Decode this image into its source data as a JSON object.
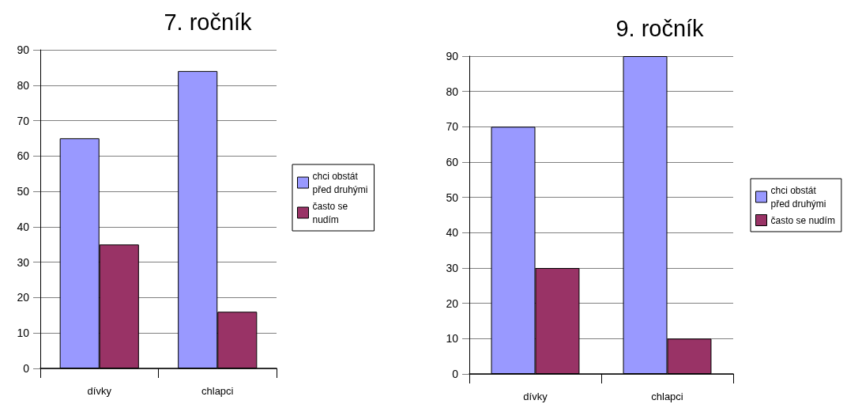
{
  "chart_data": [
    {
      "type": "bar",
      "title": "7. ročník",
      "categories": [
        "dívky",
        "chlapci"
      ],
      "series": [
        {
          "name": "chci obstát před druhými",
          "color": "#9999ff",
          "values": [
            65,
            84
          ]
        },
        {
          "name": "často se nudím",
          "color": "#993366",
          "values": [
            35,
            16
          ]
        }
      ],
      "ylim": [
        0,
        90
      ],
      "yticks": [
        0,
        10,
        20,
        30,
        40,
        50,
        60,
        70,
        80,
        90
      ],
      "grid": "y",
      "legend": "right"
    },
    {
      "type": "bar",
      "title": "9. ročník",
      "categories": [
        "dívky",
        "chlapci"
      ],
      "series": [
        {
          "name": "chci obstát před druhými",
          "color": "#9999ff",
          "values": [
            70,
            90
          ]
        },
        {
          "name": "často se nudím",
          "color": "#993366",
          "values": [
            30,
            10
          ]
        }
      ],
      "ylim": [
        0,
        90
      ],
      "yticks": [
        0,
        10,
        20,
        30,
        40,
        50,
        60,
        70,
        80,
        90
      ],
      "grid": "y",
      "legend": "right"
    }
  ]
}
